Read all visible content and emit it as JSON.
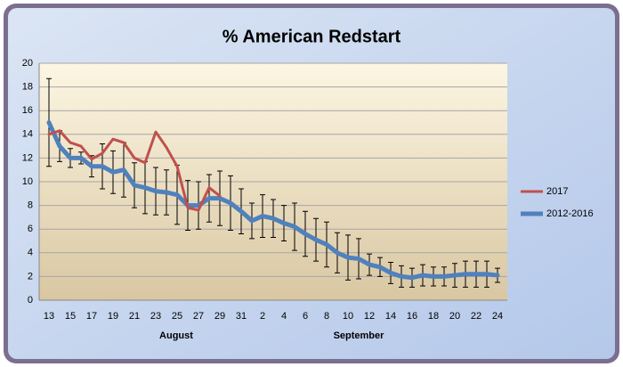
{
  "chart_data": {
    "type": "line",
    "title": "% American Redstart",
    "categories": [
      "13",
      null,
      "15",
      null,
      "17",
      null,
      "19",
      null,
      "21",
      null,
      "23",
      null,
      "25",
      null,
      "27",
      null,
      "29",
      null,
      "31",
      null,
      "2",
      null,
      "4",
      null,
      "6",
      null,
      "8",
      null,
      "10",
      null,
      "12",
      null,
      "14",
      null,
      "16",
      null,
      "18",
      null,
      "20",
      null,
      "22",
      null,
      "24"
    ],
    "groups": [
      "August",
      "September"
    ],
    "series": [
      {
        "name": "2017",
        "color": "#c0504d",
        "values": [
          14.0,
          14.3,
          13.3,
          13.0,
          11.9,
          12.4,
          13.6,
          13.3,
          12.0,
          11.6,
          14.2,
          12.9,
          11.3,
          7.8,
          7.6,
          9.5,
          8.8,
          null,
          null,
          null,
          null,
          null,
          null,
          null,
          null,
          null,
          null,
          null,
          null,
          null,
          null,
          null,
          null,
          null,
          null,
          null,
          null,
          null,
          null,
          null,
          null,
          null,
          null
        ]
      },
      {
        "name": "2012-2016",
        "color": "#4f81bd",
        "values": [
          15.0,
          13.0,
          12.0,
          12.0,
          11.3,
          11.3,
          10.8,
          11.0,
          9.7,
          9.5,
          9.2,
          9.1,
          8.9,
          8.0,
          8.0,
          8.6,
          8.6,
          8.2,
          7.5,
          6.7,
          7.1,
          6.9,
          6.5,
          6.2,
          5.6,
          5.1,
          4.7,
          4.0,
          3.6,
          3.5,
          3.0,
          2.8,
          2.3,
          2.0,
          1.9,
          2.1,
          2.0,
          2.0,
          2.1,
          2.2,
          2.2,
          2.2,
          2.1
        ],
        "errors": [
          3.7,
          1.3,
          0.8,
          0.5,
          0.9,
          1.9,
          1.8,
          2.3,
          1.9,
          2.2,
          2.0,
          1.9,
          2.5,
          2.1,
          2.0,
          2.0,
          2.3,
          2.3,
          1.9,
          1.5,
          1.8,
          1.6,
          1.5,
          2.0,
          1.9,
          1.8,
          1.9,
          1.7,
          1.9,
          1.7,
          0.9,
          0.8,
          0.9,
          0.9,
          0.8,
          0.9,
          0.8,
          0.8,
          1.0,
          1.1,
          1.1,
          1.1,
          0.6
        ]
      }
    ],
    "ylim": [
      0,
      20
    ],
    "yticks": [
      0,
      2,
      4,
      6,
      8,
      10,
      12,
      14,
      16,
      18,
      20
    ],
    "grid": true,
    "legend": "right"
  }
}
